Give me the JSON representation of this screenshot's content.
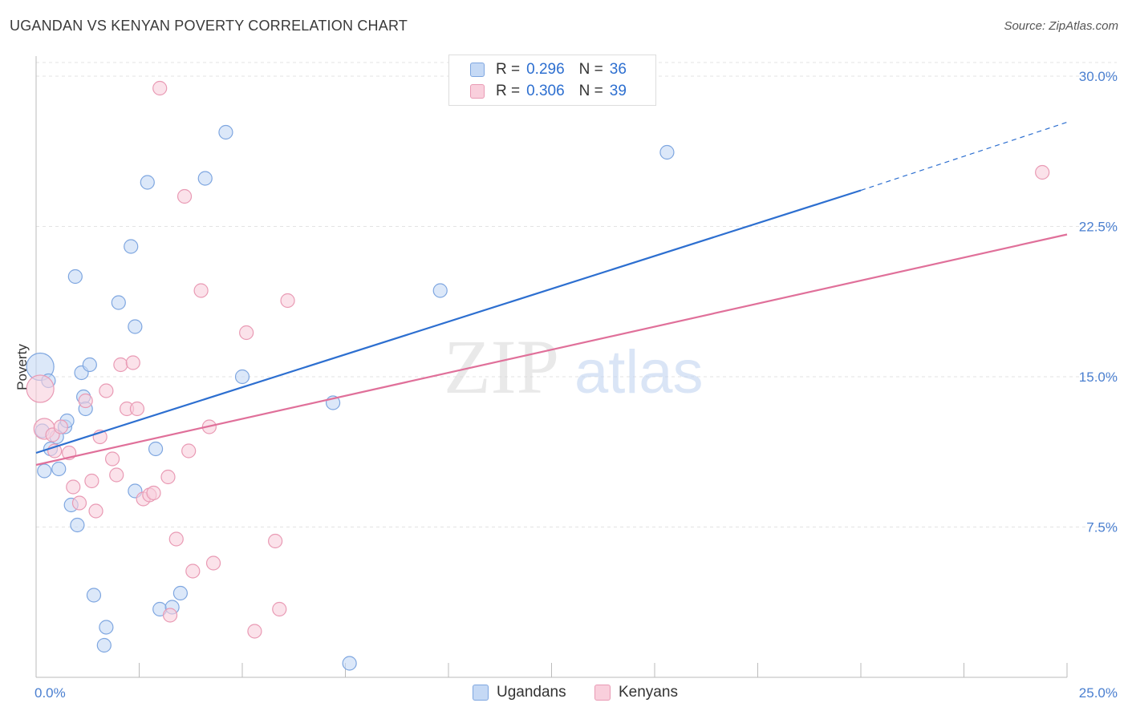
{
  "title": "UGANDAN VS KENYAN POVERTY CORRELATION CHART",
  "source": "Source: ZipAtlas.com",
  "watermark": {
    "zip": "ZIP",
    "atlas": "atlas"
  },
  "legend": {
    "rows": [
      {
        "r_label": "R =",
        "r_value": "0.296",
        "n_label": "N =",
        "n_value": "36"
      },
      {
        "r_label": "R =",
        "r_value": "0.306",
        "n_label": "N =",
        "n_value": "39"
      }
    ]
  },
  "colors": {
    "ugandans_fill": "#c5d9f5",
    "ugandans_stroke": "#7ea6e0",
    "ugandans_line": "#2d6fd0",
    "kenyans_fill": "#f9cfdc",
    "kenyans_stroke": "#e99ab4",
    "kenyans_line": "#e0709a",
    "grid": "#e3e3e3",
    "tick_text": "#4a7fd0"
  },
  "chart_data": {
    "type": "scatter",
    "title": "UGANDAN VS KENYAN POVERTY CORRELATION CHART",
    "xlabel": "",
    "ylabel": "Poverty",
    "xlim": [
      0,
      25
    ],
    "ylim": [
      0,
      31
    ],
    "x_tick_labels": [
      "0.0%",
      "25.0%"
    ],
    "y_ticks": [
      7.5,
      15.0,
      22.5,
      30.0
    ],
    "y_tick_labels": [
      "7.5%",
      "15.0%",
      "22.5%",
      "30.0%"
    ],
    "grid": true,
    "legend_position": "top-center",
    "series": [
      {
        "name": "Ugandans",
        "r": 0.296,
        "n": 36,
        "trend": {
          "x0": 0,
          "y0": 11.2,
          "x1": 20,
          "y1": 24.3,
          "dashed_to_x": 25,
          "dashed_to_y": 27.7
        },
        "points": [
          {
            "x": 0.1,
            "y": 15.5,
            "big": true
          },
          {
            "x": 0.3,
            "y": 14.8
          },
          {
            "x": 0.15,
            "y": 12.3
          },
          {
            "x": 0.35,
            "y": 11.4
          },
          {
            "x": 0.5,
            "y": 12.0
          },
          {
            "x": 0.7,
            "y": 12.5
          },
          {
            "x": 0.75,
            "y": 12.8
          },
          {
            "x": 0.2,
            "y": 10.3
          },
          {
            "x": 0.55,
            "y": 10.4
          },
          {
            "x": 0.85,
            "y": 8.6
          },
          {
            "x": 1.0,
            "y": 7.6
          },
          {
            "x": 1.1,
            "y": 15.2
          },
          {
            "x": 1.15,
            "y": 14.0
          },
          {
            "x": 1.2,
            "y": 13.4
          },
          {
            "x": 1.3,
            "y": 15.6
          },
          {
            "x": 0.95,
            "y": 20.0
          },
          {
            "x": 2.0,
            "y": 18.7
          },
          {
            "x": 2.3,
            "y": 21.5
          },
          {
            "x": 2.4,
            "y": 17.5
          },
          {
            "x": 2.7,
            "y": 24.7
          },
          {
            "x": 2.9,
            "y": 11.4
          },
          {
            "x": 2.4,
            "y": 9.3
          },
          {
            "x": 1.4,
            "y": 4.1
          },
          {
            "x": 1.7,
            "y": 2.5
          },
          {
            "x": 1.65,
            "y": 1.6
          },
          {
            "x": 3.0,
            "y": 3.4
          },
          {
            "x": 3.3,
            "y": 3.5
          },
          {
            "x": 3.5,
            "y": 4.2
          },
          {
            "x": 4.1,
            "y": 24.9
          },
          {
            "x": 4.6,
            "y": 27.2
          },
          {
            "x": 5.0,
            "y": 15.0
          },
          {
            "x": 7.2,
            "y": 13.7
          },
          {
            "x": 7.6,
            "y": 0.7
          },
          {
            "x": 9.8,
            "y": 19.3
          },
          {
            "x": 15.3,
            "y": 26.2
          }
        ]
      },
      {
        "name": "Kenyans",
        "r": 0.306,
        "n": 39,
        "trend": {
          "x0": 0,
          "y0": 10.6,
          "x1": 25,
          "y1": 22.1
        },
        "points": [
          {
            "x": 0.1,
            "y": 14.4,
            "big": true
          },
          {
            "x": 0.2,
            "y": 12.4,
            "mid": true
          },
          {
            "x": 0.4,
            "y": 12.1
          },
          {
            "x": 0.45,
            "y": 11.3
          },
          {
            "x": 0.6,
            "y": 12.5
          },
          {
            "x": 0.8,
            "y": 11.2
          },
          {
            "x": 0.9,
            "y": 9.5
          },
          {
            "x": 1.05,
            "y": 8.7
          },
          {
            "x": 1.2,
            "y": 13.8
          },
          {
            "x": 1.35,
            "y": 9.8
          },
          {
            "x": 1.45,
            "y": 8.3
          },
          {
            "x": 1.55,
            "y": 12.0
          },
          {
            "x": 1.7,
            "y": 14.3
          },
          {
            "x": 1.85,
            "y": 10.9
          },
          {
            "x": 1.95,
            "y": 10.1
          },
          {
            "x": 2.05,
            "y": 15.6
          },
          {
            "x": 2.2,
            "y": 13.4
          },
          {
            "x": 2.35,
            "y": 15.7
          },
          {
            "x": 2.45,
            "y": 13.4
          },
          {
            "x": 2.6,
            "y": 8.9
          },
          {
            "x": 2.75,
            "y": 9.1
          },
          {
            "x": 2.85,
            "y": 9.2
          },
          {
            "x": 3.0,
            "y": 29.4
          },
          {
            "x": 3.2,
            "y": 10.0
          },
          {
            "x": 3.25,
            "y": 3.1
          },
          {
            "x": 3.4,
            "y": 6.9
          },
          {
            "x": 3.6,
            "y": 24.0
          },
          {
            "x": 3.7,
            "y": 11.3
          },
          {
            "x": 3.8,
            "y": 5.3
          },
          {
            "x": 4.0,
            "y": 19.3
          },
          {
            "x": 4.2,
            "y": 12.5
          },
          {
            "x": 4.3,
            "y": 5.7
          },
          {
            "x": 5.1,
            "y": 17.2
          },
          {
            "x": 5.3,
            "y": 2.3
          },
          {
            "x": 5.8,
            "y": 6.8
          },
          {
            "x": 5.9,
            "y": 3.4
          },
          {
            "x": 6.1,
            "y": 18.8
          },
          {
            "x": 24.4,
            "y": 25.2
          }
        ]
      }
    ]
  }
}
